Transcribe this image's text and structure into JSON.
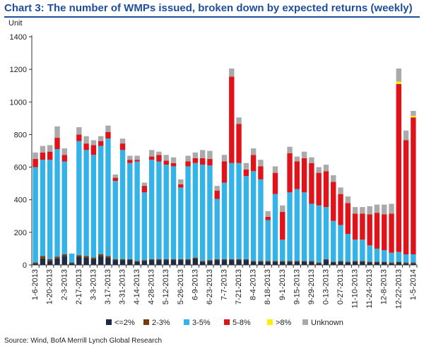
{
  "header": {
    "title": "Chart 3: The number of WMPs issued, broken down by expected returns (weekly)",
    "source": "Source: Wind, BofA Merrill Lynch Global Research"
  },
  "chart_data": {
    "type": "bar",
    "stacked": true,
    "title": "Chart 3: The number of WMPs issued, broken down by expected returns (weekly)",
    "ylabel": "Unit",
    "ylim": [
      0,
      1400
    ],
    "yticks": [
      0,
      200,
      400,
      600,
      800,
      1000,
      1200,
      1400
    ],
    "grid": false,
    "legend_position": "bottom",
    "x_tick_labels": [
      "1-6-2013",
      "1-20-2013",
      "2-3-2013",
      "2-17-2013",
      "3-3-2013",
      "3-17-2013",
      "3-31-2013",
      "4-14-2013",
      "4-28-2013",
      "5-12-2013",
      "5-26-2013",
      "6-9-2013",
      "6-23-2013",
      "7-7-2013",
      "7-21-2013",
      "8-4-2013",
      "8-18-2013",
      "9-1-2013",
      "9-15-2013",
      "9-29-2013",
      "0-13-2013",
      "0-27-2013",
      "11-10-2013",
      "11-24-2013",
      "12-8-2013",
      "12-22-2013",
      "1-5-2014"
    ],
    "num_weeks": 53,
    "series": [
      {
        "name": "<=2%",
        "color": "#1f2a44",
        "values": [
          10,
          40,
          25,
          40,
          55,
          10,
          50,
          45,
          35,
          55,
          45,
          30,
          30,
          30,
          20,
          25,
          30,
          30,
          30,
          30,
          30,
          30,
          40,
          20,
          25,
          30,
          30,
          30,
          30,
          30,
          20,
          20,
          20,
          20,
          20,
          20,
          20,
          20,
          20,
          10,
          30,
          15,
          20,
          15,
          20,
          20,
          15,
          15,
          15,
          10,
          15,
          10,
          10
        ]
      },
      {
        "name": "2-3%",
        "color": "#7a3a10",
        "values": [
          5,
          15,
          10,
          10,
          10,
          5,
          10,
          10,
          10,
          10,
          10,
          5,
          5,
          5,
          5,
          5,
          5,
          5,
          5,
          5,
          5,
          5,
          5,
          5,
          5,
          5,
          5,
          5,
          5,
          5,
          5,
          5,
          5,
          5,
          5,
          5,
          5,
          5,
          5,
          5,
          5,
          5,
          5,
          5,
          5,
          5,
          5,
          5,
          5,
          5,
          5,
          5,
          5
        ]
      },
      {
        "name": "3-5%",
        "color": "#33b3e8",
        "values": [
          585,
          590,
          610,
          660,
          570,
          55,
          700,
          650,
          630,
          665,
          720,
          480,
          670,
          590,
          610,
          415,
          610,
          600,
          580,
          570,
          440,
          570,
          580,
          590,
          580,
          370,
          470,
          590,
          590,
          510,
          550,
          500,
          250,
          410,
          130,
          420,
          440,
          420,
          350,
          350,
          320,
          250,
          220,
          170,
          130,
          130,
          100,
          80,
          70,
          60,
          60,
          50,
          50
        ]
      },
      {
        "name": "5-8%",
        "color": "#e0131b",
        "values": [
          50,
          45,
          50,
          70,
          40,
          0,
          40,
          40,
          60,
          30,
          40,
          20,
          40,
          20,
          10,
          40,
          20,
          40,
          25,
          20,
          20,
          30,
          30,
          40,
          40,
          50,
          130,
          530,
          240,
          40,
          100,
          80,
          20,
          130,
          170,
          240,
          170,
          210,
          250,
          200,
          220,
          240,
          190,
          190,
          160,
          160,
          190,
          220,
          220,
          240,
          1030,
          700,
          840
        ]
      },
      {
        "name": ">8%",
        "color": "#ffee00",
        "values": [
          0,
          0,
          0,
          0,
          0,
          0,
          0,
          0,
          0,
          0,
          0,
          0,
          0,
          0,
          0,
          0,
          0,
          0,
          0,
          0,
          0,
          0,
          0,
          0,
          0,
          0,
          0,
          0,
          0,
          0,
          0,
          0,
          0,
          0,
          0,
          0,
          0,
          0,
          0,
          0,
          0,
          0,
          0,
          0,
          0,
          0,
          0,
          0,
          0,
          0,
          15,
          0,
          10
        ]
      },
      {
        "name": "Unknown",
        "color": "#aaaaaa",
        "values": [
          40,
          40,
          40,
          70,
          40,
          0,
          45,
          45,
          30,
          30,
          40,
          20,
          30,
          25,
          25,
          20,
          40,
          20,
          35,
          35,
          30,
          35,
          35,
          50,
          50,
          30,
          40,
          50,
          40,
          40,
          40,
          40,
          35,
          40,
          40,
          40,
          30,
          40,
          35,
          35,
          40,
          40,
          40,
          40,
          40,
          40,
          50,
          50,
          60,
          60,
          80,
          60,
          30
        ]
      }
    ]
  }
}
